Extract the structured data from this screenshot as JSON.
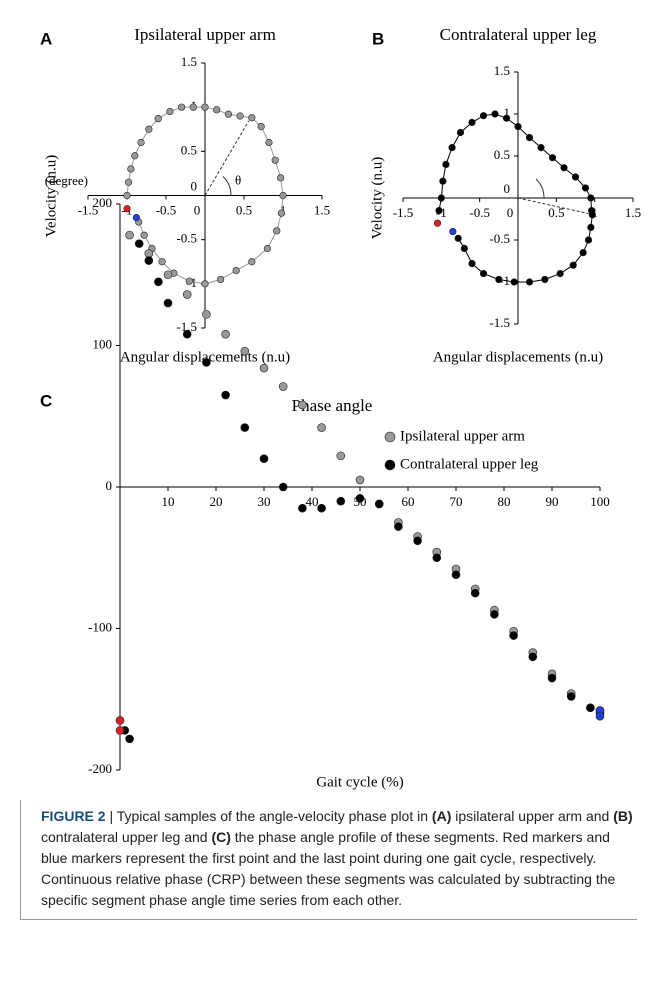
{
  "chart_data": [
    {
      "type": "scatter",
      "panel_label": "A",
      "title": "Ipsilateral upper arm",
      "xlabel": "Angular displacements (n.u)",
      "ylabel": "Velocity (n.u)",
      "annotation": "θ",
      "xlim": [
        -1.5,
        1.5
      ],
      "ylim": [
        -1.5,
        1.5
      ],
      "xticks": [
        -1.5,
        -1,
        -0.5,
        0,
        0.5,
        1,
        1.5
      ],
      "yticks": [
        1.5,
        1,
        0.5,
        0,
        -0.5,
        -1,
        -1.5
      ],
      "series": [
        {
          "color": "#999999",
          "x": [
            -1.0,
            -0.98,
            -0.95,
            -0.9,
            -0.82,
            -0.72,
            -0.6,
            -0.45,
            -0.3,
            -0.15,
            0,
            0.15,
            0.3,
            0.45,
            0.6,
            0.72,
            0.82,
            0.9,
            0.97,
            1.0,
            0.98,
            0.92,
            0.8,
            0.6,
            0.4,
            0.2,
            0,
            -0.2,
            -0.4,
            -0.55,
            -0.68,
            -0.78,
            -0.85
          ],
          "y": [
            0.0,
            0.15,
            0.3,
            0.45,
            0.6,
            0.75,
            0.87,
            0.95,
            1.0,
            1.0,
            1.0,
            0.97,
            0.92,
            0.9,
            0.88,
            0.78,
            0.6,
            0.4,
            0.2,
            0,
            -0.2,
            -0.4,
            -0.6,
            -0.75,
            -0.85,
            -0.95,
            -1.0,
            -0.97,
            -0.88,
            -0.75,
            -0.6,
            -0.45,
            -0.3
          ]
        },
        {
          "color": "#e02020",
          "x": [
            -1.0
          ],
          "y": [
            -0.15
          ]
        },
        {
          "color": "#2040e0",
          "x": [
            -0.88
          ],
          "y": [
            -0.25
          ]
        }
      ]
    },
    {
      "type": "scatter",
      "panel_label": "B",
      "title": "Contralateral upper leg",
      "xlabel": "Angular displacements (n.u)",
      "ylabel": "Velocity (n.u)",
      "xlim": [
        -1.5,
        1.5
      ],
      "ylim": [
        -1.5,
        1.5
      ],
      "xticks": [
        -1.5,
        -1,
        -0.5,
        0,
        0.5,
        1,
        1.5
      ],
      "yticks": [
        1.5,
        1,
        0.5,
        0,
        -0.5,
        -1,
        -1.5
      ],
      "series": [
        {
          "color": "#000000",
          "x": [
            -1.03,
            -1.0,
            -0.98,
            -0.94,
            -0.86,
            -0.75,
            -0.6,
            -0.45,
            -0.3,
            -0.15,
            0,
            0.15,
            0.3,
            0.45,
            0.6,
            0.75,
            0.88,
            0.95,
            0.96,
            0.97,
            0.95,
            0.92,
            0.85,
            0.72,
            0.55,
            0.35,
            0.15,
            -0.05,
            -0.25,
            -0.45,
            -0.6,
            -0.7,
            -0.78
          ],
          "y": [
            -0.15,
            0.0,
            0.2,
            0.4,
            0.6,
            0.78,
            0.9,
            0.98,
            1.0,
            0.95,
            0.85,
            0.72,
            0.6,
            0.48,
            0.36,
            0.25,
            0.12,
            0.0,
            -0.15,
            -0.2,
            -0.35,
            -0.5,
            -0.65,
            -0.8,
            -0.9,
            -0.97,
            -1.0,
            -1.0,
            -0.97,
            -0.9,
            -0.78,
            -0.6,
            -0.48
          ]
        },
        {
          "color": "#e02020",
          "x": [
            -1.05
          ],
          "y": [
            -0.3
          ]
        },
        {
          "color": "#2040e0",
          "x": [
            -0.85
          ],
          "y": [
            -0.4
          ]
        }
      ]
    },
    {
      "type": "scatter",
      "panel_label": "C",
      "title": "Phase angle",
      "xlabel": "Gait cycle (%)",
      "ylabel": "(degree)",
      "xlim": [
        0,
        100
      ],
      "ylim": [
        -200,
        200
      ],
      "xticks": [
        10,
        20,
        30,
        40,
        50,
        60,
        70,
        80,
        90,
        100
      ],
      "yticks": [
        200,
        100,
        0,
        -100,
        -200
      ],
      "series": [
        {
          "name": "Ipsilateral upper arm",
          "color": "#999999",
          "x": [
            2,
            6,
            10,
            14,
            18,
            22,
            26,
            30,
            34,
            38,
            42,
            46,
            50,
            54,
            58,
            62,
            66,
            70,
            74,
            78,
            82,
            86,
            90,
            94,
            98,
            100
          ],
          "y": [
            178,
            165,
            150,
            136,
            122,
            108,
            96,
            84,
            71,
            58,
            42,
            22,
            5,
            -12,
            -25,
            -35,
            -46,
            -58,
            -72,
            -87,
            -102,
            -117,
            -132,
            -146,
            -156,
            -158
          ]
        },
        {
          "name": "Contralateral upper leg",
          "color": "#000000",
          "x": [
            1,
            2,
            4,
            6,
            8,
            10,
            14,
            18,
            22,
            26,
            30,
            34,
            38,
            42,
            46,
            50,
            54,
            58,
            62,
            66,
            70,
            74,
            78,
            82,
            86,
            90,
            94,
            98,
            100
          ],
          "y": [
            -172,
            -178,
            172,
            160,
            145,
            130,
            108,
            88,
            65,
            42,
            20,
            0,
            -15,
            -15,
            -10,
            -8,
            -12,
            -28,
            -38,
            -50,
            -62,
            -75,
            -90,
            -105,
            -120,
            -135,
            -148,
            -156,
            -160
          ]
        },
        {
          "color": "#e02020",
          "x": [
            0,
            0
          ],
          "y": [
            -165,
            -172
          ]
        },
        {
          "color": "#2040e0",
          "x": [
            100,
            100
          ],
          "y": [
            -158,
            -162
          ]
        }
      ]
    }
  ],
  "caption": [
    {
      "text": "FIGURE 2",
      "bold": true
    },
    {
      "text": " | Typical samples of the angle-velocity phase plot in ",
      "bold": false
    },
    {
      "text": "(A)",
      "bold": true
    },
    {
      "text": " ipsilateral upper arm and ",
      "bold": false
    },
    {
      "text": "(B)",
      "bold": true
    },
    {
      "text": " contralateral upper leg and ",
      "bold": false
    },
    {
      "text": "(C)",
      "bold": true
    },
    {
      "text": " the phase angle profile of these segments. Red markers and blue markers represent the first point and the last point during one gait cycle, respectively. Continuous relative phase (CRP) between these segments was calculated by subtracting the specific segment phase angle time series from each other.",
      "bold": false
    }
  ]
}
